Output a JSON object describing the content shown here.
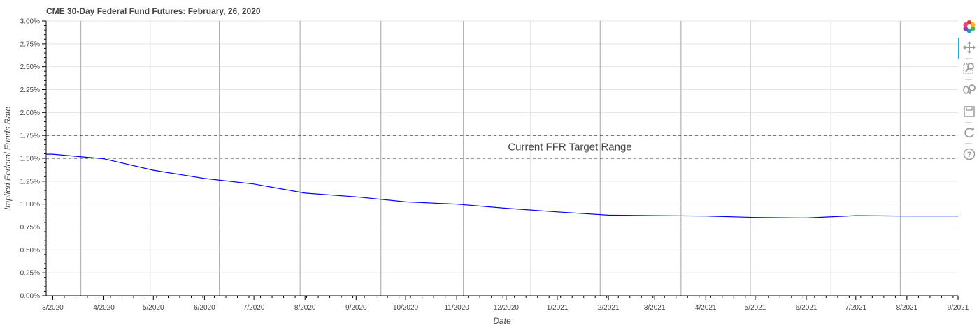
{
  "chart_data": {
    "type": "line",
    "title": "CME 30-Day Federal Fund Futures: February, 26, 2020",
    "xlabel": "Date",
    "ylabel": "Implied Federal Funds Rate",
    "x": [
      "3/2020",
      "4/2020",
      "5/2020",
      "6/2020",
      "7/2020",
      "8/2020",
      "9/2020",
      "10/2020",
      "11/2020",
      "12/2020",
      "1/2021",
      "2/2021",
      "3/2021",
      "4/2021",
      "5/2021",
      "6/2021",
      "7/2021",
      "8/2021",
      "9/2021"
    ],
    "x_ticks": [
      "3/2020",
      "4/2020",
      "5/2020",
      "6/2020",
      "7/2020",
      "8/2020",
      "9/2020",
      "10/2020",
      "11/2020",
      "12/2020",
      "1/2021",
      "2/2021",
      "3/2021",
      "4/2021",
      "5/2021",
      "6/2021",
      "7/2021",
      "8/2021",
      "9/2021"
    ],
    "series": [
      {
        "values": [
          1.545,
          1.495,
          1.37,
          1.28,
          1.22,
          1.12,
          1.08,
          1.025,
          1.0,
          0.955,
          0.915,
          0.88,
          0.875,
          0.87,
          0.855,
          0.85,
          0.875,
          0.87,
          0.87
        ],
        "color": "#0000ff"
      }
    ],
    "y_ticks": [
      "0.00%",
      "0.25%",
      "0.50%",
      "0.75%",
      "1.00%",
      "1.25%",
      "1.50%",
      "1.75%",
      "2.00%",
      "2.25%",
      "2.50%",
      "2.75%",
      "3.00%"
    ],
    "ylim": [
      0,
      3.0
    ],
    "grid": true,
    "reference_lines": [
      1.5,
      1.75
    ],
    "annotation": "Current FFR Target Range",
    "meeting_dates": [
      "2020-03-18",
      "2020-04-29",
      "2020-06-10",
      "2020-07-29",
      "2020-09-16",
      "2020-11-05",
      "2020-12-16",
      "2021-01-27",
      "2021-03-17",
      "2021-04-28",
      "2021-06-16",
      "2021-07-28"
    ]
  },
  "toolbar": {
    "tools": [
      "bokeh-logo-icon",
      "pan-icon",
      "box-zoom-icon",
      "wheel-zoom-icon",
      "save-icon",
      "reset-icon",
      "help-icon"
    ]
  }
}
